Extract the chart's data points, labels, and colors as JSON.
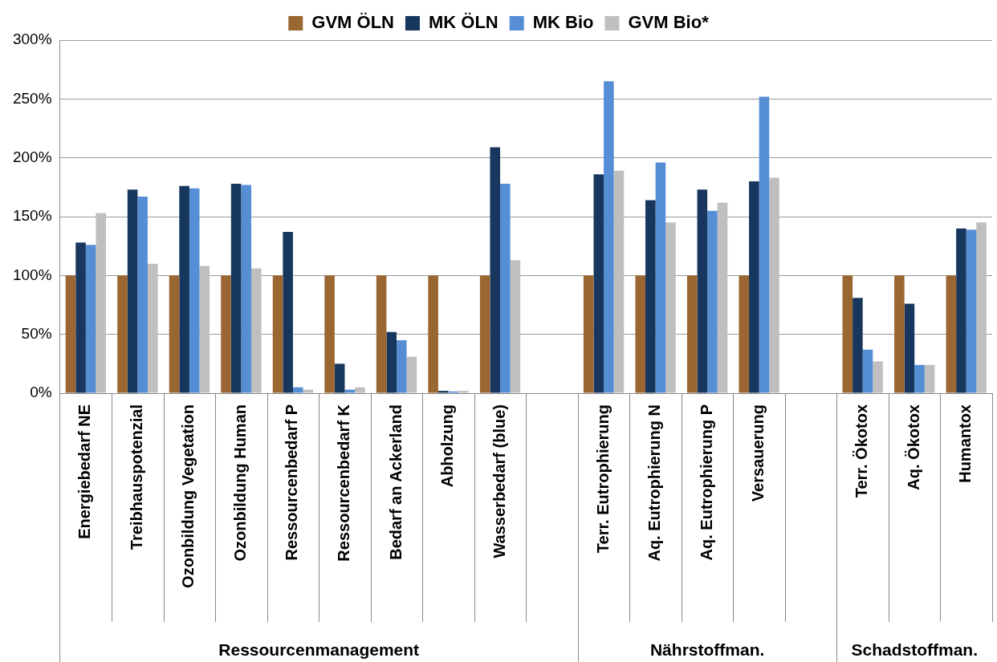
{
  "chart_data": {
    "type": "bar",
    "categories": [
      "Energiebedarf NE",
      "Treibhauspotenzial",
      "Ozonbildung Vegetation",
      "Ozonbildung Human",
      "Ressourcenbedarf P",
      "Ressourcenbedarf K",
      "Bedarf an Ackerland",
      "Abholzung",
      "Wasserbedarf (blue)",
      null,
      "Terr. Eutrophierung",
      "Aq. Eutrophierung N",
      "Aq. Eutrophierung P",
      "Versauerung",
      null,
      "Terr. Ökotox",
      "Aq. Ökotox",
      "Humantox"
    ],
    "series": [
      {
        "name": "GVM ÖLN",
        "color": "#9a6632",
        "values": [
          100,
          100,
          100,
          100,
          100,
          100,
          100,
          100,
          100,
          null,
          100,
          100,
          100,
          100,
          null,
          100,
          100,
          100
        ]
      },
      {
        "name": "MK ÖLN",
        "color": "#17375e",
        "values": [
          128,
          173,
          176,
          178,
          137,
          25,
          52,
          2,
          209,
          null,
          186,
          164,
          173,
          180,
          null,
          81,
          76,
          140
        ]
      },
      {
        "name": "MK Bio",
        "color": "#558ed5",
        "values": [
          126,
          167,
          174,
          177,
          5,
          3,
          45,
          1.5,
          178,
          null,
          265,
          196,
          155,
          252,
          null,
          37,
          24,
          139
        ]
      },
      {
        "name": "GVM Bio*",
        "color": "#bfbfbf",
        "values": [
          153,
          110,
          108,
          106,
          3,
          5,
          31,
          2,
          113,
          null,
          189,
          145,
          162,
          183,
          null,
          27,
          24,
          145
        ]
      }
    ],
    "ylim": [
      0,
      300
    ],
    "yticks": [
      {
        "value": 0,
        "label": "0%"
      },
      {
        "value": 50,
        "label": "50%"
      },
      {
        "value": 100,
        "label": "100%"
      },
      {
        "value": 150,
        "label": "150%"
      },
      {
        "value": 200,
        "label": "200%"
      },
      {
        "value": 250,
        "label": "250%"
      },
      {
        "value": 300,
        "label": "300%"
      }
    ],
    "grid": "y",
    "legend": "top",
    "annotations": [
      "Ressourcenmanagement",
      "Nährstoffman.",
      "Schadstoffman."
    ]
  }
}
